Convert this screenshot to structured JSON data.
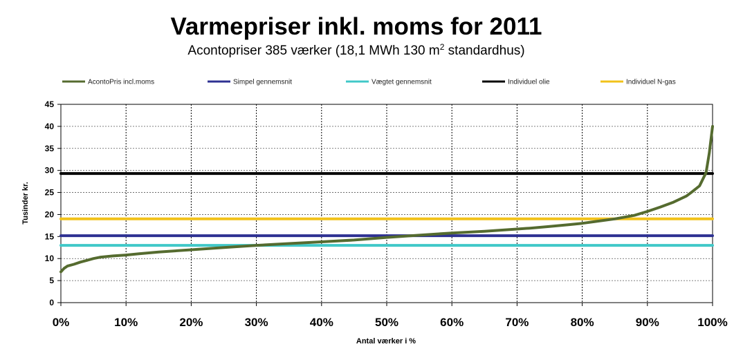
{
  "chart_data": {
    "type": "line",
    "title": "Varmepriser inkl. moms for 2011",
    "subtitle_prefix": "Acontopriser 385 værker (18,1 MWh 130 m",
    "subtitle_sup": "2",
    "subtitle_suffix": " standardhus)",
    "xlabel": "Antal værker i %",
    "ylabel": "Tusinder kr.",
    "xlim": [
      0,
      100
    ],
    "ylim": [
      0,
      45
    ],
    "x_ticks": [
      "0%",
      "10%",
      "20%",
      "30%",
      "40%",
      "50%",
      "60%",
      "70%",
      "80%",
      "90%",
      "100%"
    ],
    "y_ticks": [
      "0",
      "5",
      "10",
      "15",
      "20",
      "25",
      "30",
      "35",
      "40",
      "45"
    ],
    "grid": true,
    "legend_position": "top",
    "series": [
      {
        "name": "AcontoPris incl.moms",
        "color": "#556b2f",
        "x": [
          0,
          0.5,
          1,
          2,
          3,
          4,
          5,
          6,
          8,
          10,
          12,
          15,
          20,
          25,
          30,
          35,
          40,
          45,
          50,
          55,
          60,
          65,
          70,
          72,
          75,
          78,
          80,
          82,
          85,
          88,
          90,
          92,
          94,
          96,
          97,
          98,
          98.5,
          99,
          99.5,
          100
        ],
        "y": [
          7,
          7.8,
          8.3,
          8.7,
          9.2,
          9.6,
          10,
          10.3,
          10.6,
          10.8,
          11.1,
          11.5,
          12,
          12.5,
          13,
          13.4,
          13.8,
          14.2,
          14.8,
          15.3,
          15.8,
          16.2,
          16.7,
          16.9,
          17.3,
          17.7,
          18,
          18.4,
          19,
          19.8,
          20.7,
          21.7,
          22.8,
          24.2,
          25.3,
          26.5,
          28,
          29.5,
          34,
          40
        ]
      },
      {
        "name": "Simpel gennemsnit",
        "color": "#2e3192",
        "x": [
          0,
          100
        ],
        "y": [
          15.2,
          15.2
        ]
      },
      {
        "name": "Vægtet gennemsnit",
        "color": "#40c8c8",
        "x": [
          0,
          100
        ],
        "y": [
          13,
          13
        ]
      },
      {
        "name": "Individuel olie",
        "color": "#000000",
        "x": [
          0,
          100
        ],
        "y": [
          29.3,
          29.3
        ]
      },
      {
        "name": "Individuel N-gas",
        "color": "#f2c21a",
        "x": [
          0,
          100
        ],
        "y": [
          19,
          19
        ]
      }
    ]
  }
}
